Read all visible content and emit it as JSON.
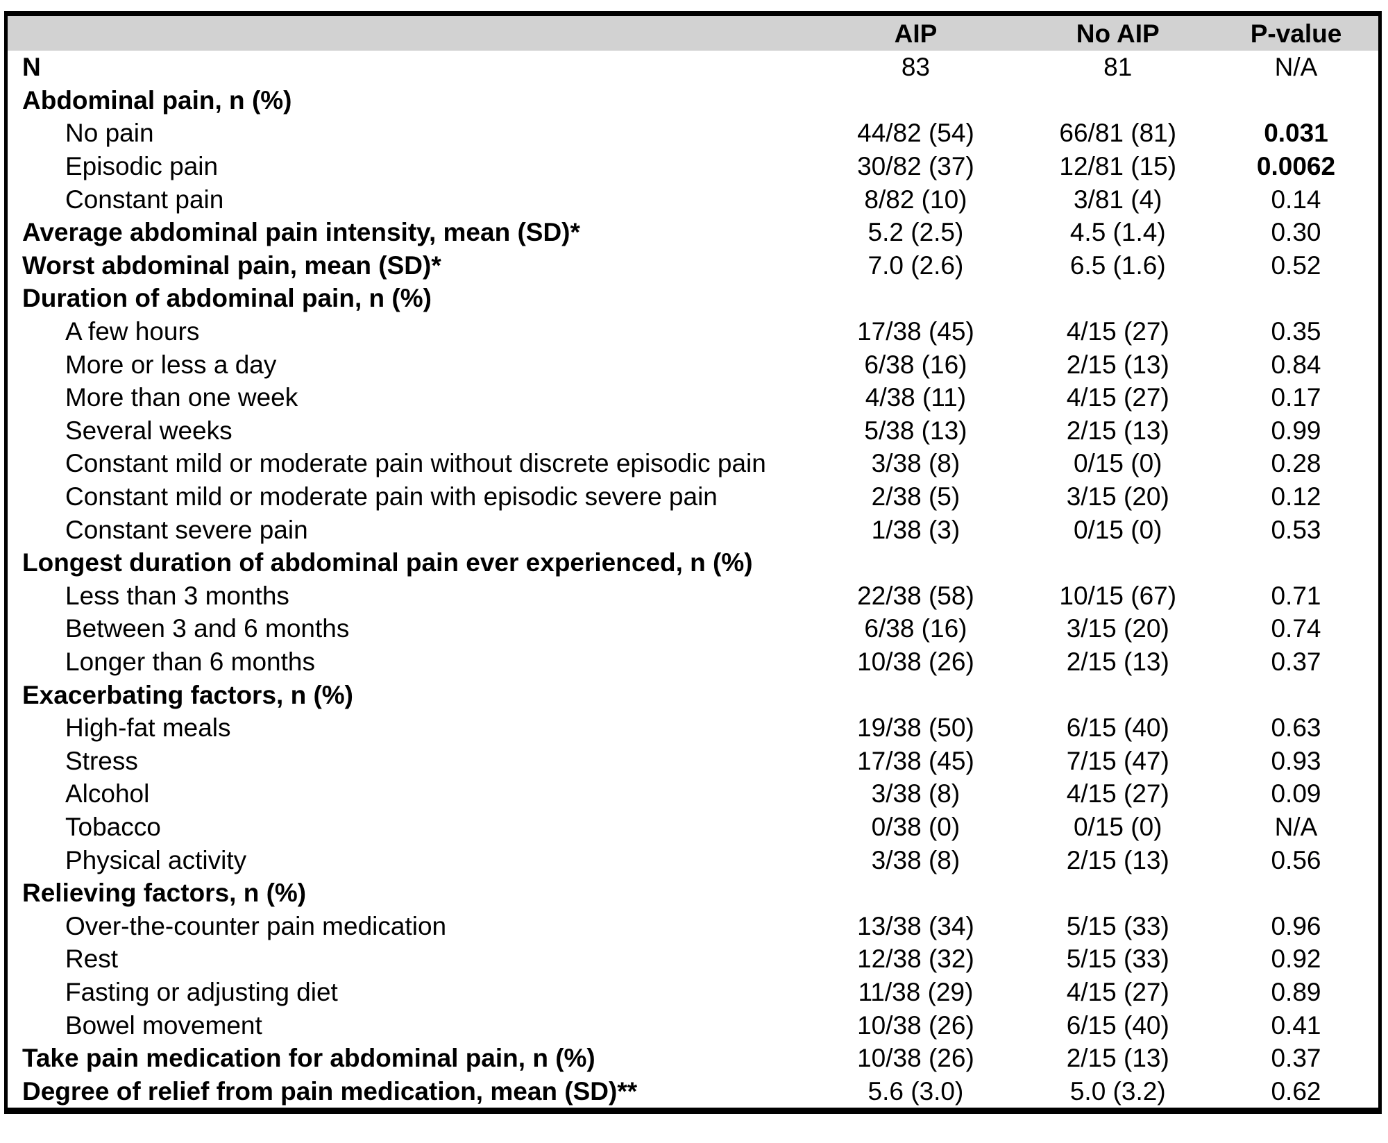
{
  "colors": {
    "header_bg": "#d2d2d2",
    "border": "#000000",
    "text": "#000000"
  },
  "table": {
    "columns": [
      {
        "label": "AIP"
      },
      {
        "label": "No AIP"
      },
      {
        "label": "P-value"
      }
    ],
    "rows": [
      {
        "label": "N",
        "bold": true,
        "indent": 0,
        "aip": "83",
        "noaip": "81",
        "p": "N/A",
        "pBold": false
      },
      {
        "label": "Abdominal pain, n (%)",
        "bold": true,
        "indent": 0,
        "aip": "",
        "noaip": "",
        "p": "",
        "pBold": false
      },
      {
        "label": "No pain",
        "bold": false,
        "indent": 1,
        "aip": "44/82 (54)",
        "noaip": "66/81 (81)",
        "p": "0.031",
        "pBold": true
      },
      {
        "label": "Episodic pain",
        "bold": false,
        "indent": 1,
        "aip": "30/82 (37)",
        "noaip": "12/81 (15)",
        "p": "0.0062",
        "pBold": true
      },
      {
        "label": "Constant pain",
        "bold": false,
        "indent": 1,
        "aip": "8/82 (10)",
        "noaip": "3/81 (4)",
        "p": "0.14",
        "pBold": false
      },
      {
        "label": "Average abdominal pain intensity, mean (SD)*",
        "bold": true,
        "indent": 0,
        "aip": "5.2 (2.5)",
        "noaip": "4.5 (1.4)",
        "p": "0.30",
        "pBold": false
      },
      {
        "label": "Worst abdominal pain, mean (SD)*",
        "bold": true,
        "indent": 0,
        "aip": "7.0 (2.6)",
        "noaip": "6.5 (1.6)",
        "p": "0.52",
        "pBold": false
      },
      {
        "label": "Duration of abdominal pain, n (%)",
        "bold": true,
        "indent": 0,
        "aip": "",
        "noaip": "",
        "p": "",
        "pBold": false
      },
      {
        "label": "A few hours",
        "bold": false,
        "indent": 1,
        "aip": "17/38 (45)",
        "noaip": "4/15 (27)",
        "p": "0.35",
        "pBold": false
      },
      {
        "label": "More or less a day",
        "bold": false,
        "indent": 1,
        "aip": "6/38 (16)",
        "noaip": "2/15 (13)",
        "p": "0.84",
        "pBold": false
      },
      {
        "label": "More than one week",
        "bold": false,
        "indent": 1,
        "aip": "4/38 (11)",
        "noaip": "4/15 (27)",
        "p": "0.17",
        "pBold": false
      },
      {
        "label": "Several weeks",
        "bold": false,
        "indent": 1,
        "aip": "5/38 (13)",
        "noaip": "2/15 (13)",
        "p": "0.99",
        "pBold": false
      },
      {
        "label": "Constant mild or moderate pain without discrete episodic pain",
        "bold": false,
        "indent": 1,
        "aip": "3/38 (8)",
        "noaip": "0/15 (0)",
        "p": "0.28",
        "pBold": false
      },
      {
        "label": "Constant mild or moderate pain with episodic severe pain",
        "bold": false,
        "indent": 1,
        "aip": "2/38 (5)",
        "noaip": "3/15 (20)",
        "p": "0.12",
        "pBold": false
      },
      {
        "label": "Constant severe pain",
        "bold": false,
        "indent": 1,
        "aip": "1/38 (3)",
        "noaip": "0/15 (0)",
        "p": "0.53",
        "pBold": false
      },
      {
        "label": "Longest duration of abdominal pain ever experienced, n (%)",
        "bold": true,
        "indent": 0,
        "aip": "",
        "noaip": "",
        "p": "",
        "pBold": false
      },
      {
        "label": "Less than 3 months",
        "bold": false,
        "indent": 1,
        "aip": "22/38 (58)",
        "noaip": "10/15 (67)",
        "p": "0.71",
        "pBold": false
      },
      {
        "label": "Between 3 and 6 months",
        "bold": false,
        "indent": 1,
        "aip": "6/38 (16)",
        "noaip": "3/15 (20)",
        "p": "0.74",
        "pBold": false
      },
      {
        "label": "Longer than 6 months",
        "bold": false,
        "indent": 1,
        "aip": "10/38 (26)",
        "noaip": "2/15 (13)",
        "p": "0.37",
        "pBold": false
      },
      {
        "label": "Exacerbating factors, n (%)",
        "bold": true,
        "indent": 0,
        "aip": "",
        "noaip": "",
        "p": "",
        "pBold": false
      },
      {
        "label": "High-fat meals",
        "bold": false,
        "indent": 1,
        "aip": "19/38 (50)",
        "noaip": "6/15 (40)",
        "p": "0.63",
        "pBold": false
      },
      {
        "label": "Stress",
        "bold": false,
        "indent": 1,
        "aip": "17/38 (45)",
        "noaip": "7/15 (47)",
        "p": "0.93",
        "pBold": false
      },
      {
        "label": "Alcohol",
        "bold": false,
        "indent": 1,
        "aip": "3/38 (8)",
        "noaip": "4/15 (27)",
        "p": "0.09",
        "pBold": false
      },
      {
        "label": "Tobacco",
        "bold": false,
        "indent": 1,
        "aip": "0/38 (0)",
        "noaip": "0/15 (0)",
        "p": "N/A",
        "pBold": false
      },
      {
        "label": "Physical activity",
        "bold": false,
        "indent": 1,
        "aip": "3/38 (8)",
        "noaip": "2/15 (13)",
        "p": "0.56",
        "pBold": false
      },
      {
        "label": "Relieving factors, n (%)",
        "bold": true,
        "indent": 0,
        "aip": "",
        "noaip": "",
        "p": "",
        "pBold": false
      },
      {
        "label": "Over-the-counter pain medication",
        "bold": false,
        "indent": 1,
        "aip": "13/38 (34)",
        "noaip": "5/15 (33)",
        "p": "0.96",
        "pBold": false
      },
      {
        "label": "Rest",
        "bold": false,
        "indent": 1,
        "aip": "12/38 (32)",
        "noaip": "5/15 (33)",
        "p": "0.92",
        "pBold": false
      },
      {
        "label": "Fasting or adjusting diet",
        "bold": false,
        "indent": 1,
        "aip": "11/38 (29)",
        "noaip": "4/15 (27)",
        "p": "0.89",
        "pBold": false
      },
      {
        "label": "Bowel movement",
        "bold": false,
        "indent": 1,
        "aip": "10/38 (26)",
        "noaip": "6/15 (40)",
        "p": "0.41",
        "pBold": false
      },
      {
        "label": "Take pain medication for abdominal pain, n (%)",
        "bold": true,
        "indent": 0,
        "aip": "10/38 (26)",
        "noaip": "2/15 (13)",
        "p": "0.37",
        "pBold": false
      },
      {
        "label": "Degree of relief from pain medication, mean (SD)**",
        "bold": true,
        "indent": 0,
        "aip": "5.6 (3.0)",
        "noaip": "5.0 (3.2)",
        "p": "0.62",
        "pBold": false
      }
    ]
  }
}
